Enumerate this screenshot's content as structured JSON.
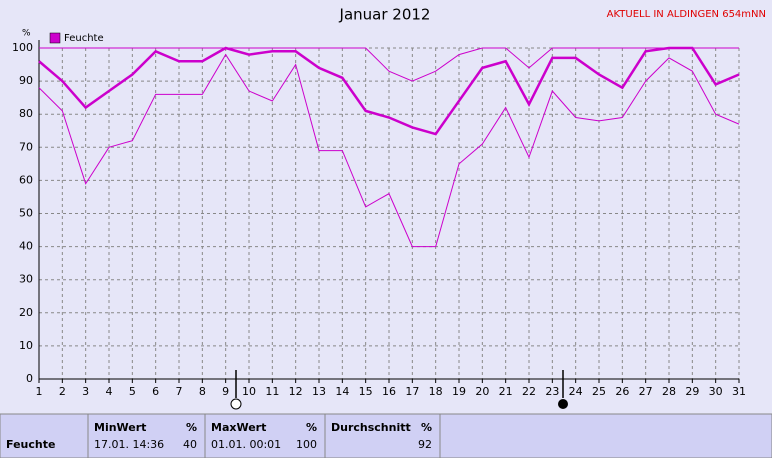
{
  "chart_data": {
    "type": "line",
    "title": "Januar 2012",
    "station": "AKTUELL IN ALDINGEN 654mNN",
    "y_label": "%",
    "x": [
      1,
      2,
      3,
      4,
      5,
      6,
      7,
      8,
      9,
      10,
      11,
      12,
      13,
      14,
      15,
      16,
      17,
      18,
      19,
      20,
      21,
      22,
      23,
      24,
      25,
      26,
      27,
      28,
      29,
      30,
      31
    ],
    "xlim": [
      1,
      31
    ],
    "xticks": [
      1,
      2,
      3,
      4,
      5,
      6,
      7,
      8,
      9,
      10,
      11,
      12,
      13,
      14,
      15,
      16,
      17,
      18,
      19,
      20,
      21,
      22,
      23,
      24,
      25,
      26,
      27,
      28,
      29,
      30,
      31
    ],
    "ylim": [
      0,
      100
    ],
    "yticks": [
      0,
      10,
      20,
      30,
      40,
      50,
      60,
      70,
      80,
      90,
      100
    ],
    "grid": true,
    "series": [
      {
        "name": "Feuchte",
        "color": "#cc00cc",
        "width": 2.5,
        "values": [
          96,
          90,
          82,
          87,
          92,
          99,
          96,
          96,
          100,
          98,
          99,
          99,
          94,
          91,
          81,
          79,
          76,
          74,
          84,
          94,
          96,
          83,
          97,
          97,
          92,
          88,
          99,
          100,
          100,
          89,
          92
        ]
      },
      {
        "color": "#cc00cc",
        "width": 1,
        "values": [
          100,
          100,
          100,
          100,
          100,
          100,
          100,
          100,
          100,
          100,
          100,
          100,
          100,
          100,
          100,
          93,
          90,
          93,
          98,
          100,
          100,
          94,
          100,
          100,
          100,
          100,
          100,
          100,
          100,
          100,
          100
        ]
      },
      {
        "color": "#cc00cc",
        "width": 1,
        "values": [
          88,
          81,
          59,
          70,
          72,
          86,
          86,
          86,
          98,
          87,
          84,
          95,
          69,
          69,
          52,
          56,
          40,
          40,
          65,
          71,
          82,
          67,
          87,
          79,
          78,
          79,
          90,
          97,
          93,
          80,
          77
        ]
      }
    ]
  },
  "stats": {
    "row_label": "Feuchte",
    "columns": [
      {
        "title": "MinWert",
        "unit": "%",
        "time": "17.01. 14:36",
        "value": 40
      },
      {
        "title": "MaxWert",
        "unit": "%",
        "time": "01.01. 00:01",
        "value": 100
      },
      {
        "title": "Durchschnitt",
        "unit": "%",
        "value": 92
      }
    ]
  }
}
